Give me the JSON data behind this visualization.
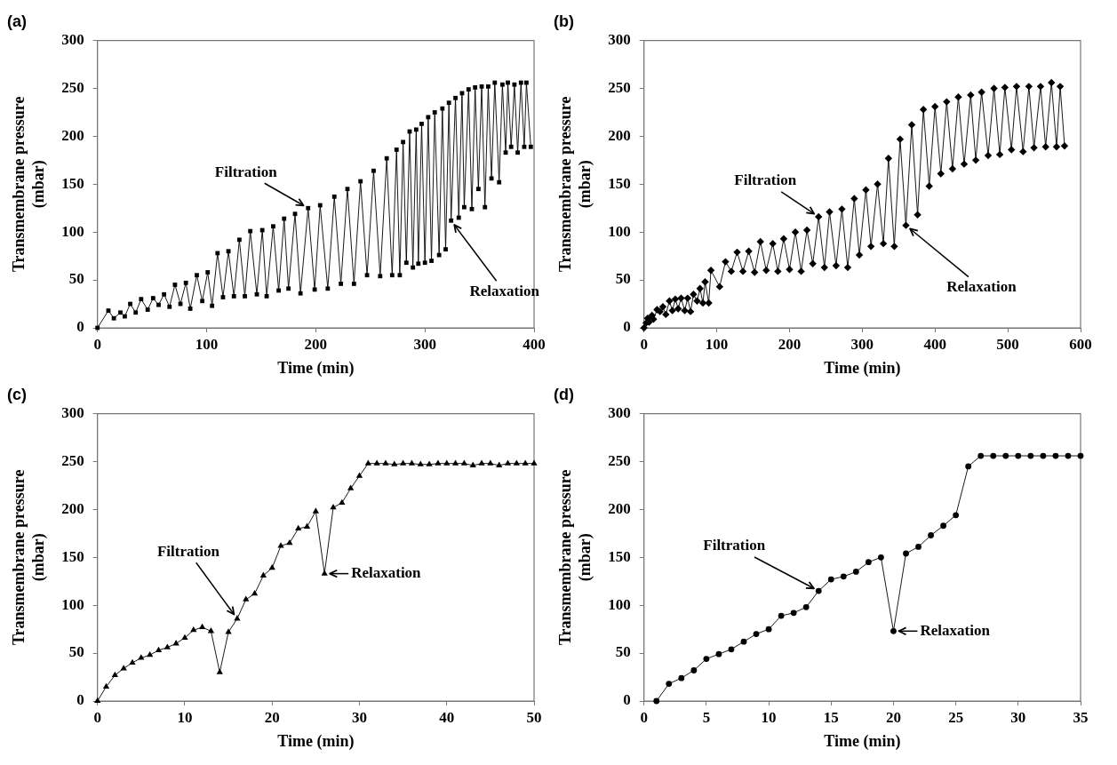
{
  "chart_data": [
    {
      "type": "line",
      "title": "(a)",
      "xlabel": "Time (min)",
      "ylabel": "Transmembrane pressure (mbar)",
      "color": "#000000",
      "marker": "square",
      "xlim": [
        0,
        400
      ],
      "xticks": [
        0,
        100,
        200,
        300,
        400
      ],
      "ylim": [
        0,
        300
      ],
      "yticks": [
        0,
        50,
        100,
        150,
        200,
        250,
        300
      ],
      "x": [
        0,
        10,
        15,
        21,
        25,
        30,
        35,
        40,
        46,
        51,
        56,
        61,
        66,
        71,
        76,
        81,
        85,
        91,
        96,
        101,
        105,
        110,
        115,
        120,
        125,
        130,
        135,
        140,
        146,
        151,
        155,
        161,
        166,
        171,
        175,
        181,
        186,
        193,
        199,
        204,
        211,
        217,
        223,
        229,
        235,
        241,
        247,
        253,
        259,
        265,
        270,
        274,
        277,
        280,
        283,
        286,
        289,
        292,
        294,
        297,
        300,
        303,
        306,
        309,
        313,
        316,
        319,
        322,
        324,
        328,
        331,
        334,
        336,
        340,
        343,
        346,
        349,
        352,
        355,
        358,
        361,
        364,
        368,
        371,
        374,
        376,
        379,
        382,
        385,
        388,
        391,
        393,
        397
      ],
      "values": [
        0,
        18,
        10,
        16,
        12,
        25,
        16,
        30,
        19,
        31,
        24,
        35,
        22,
        45,
        25,
        47,
        20,
        55,
        28,
        58,
        23,
        78,
        32,
        80,
        33,
        92,
        33,
        101,
        35,
        102,
        33,
        106,
        39,
        114,
        41,
        119,
        36,
        125,
        40,
        128,
        41,
        137,
        46,
        145,
        46,
        153,
        55,
        164,
        54,
        177,
        55,
        186,
        55,
        194,
        68,
        205,
        63,
        207,
        67,
        213,
        68,
        220,
        70,
        225,
        76,
        229,
        82,
        235,
        112,
        240,
        115,
        245,
        126,
        249,
        124,
        251,
        145,
        252,
        126,
        252,
        156,
        256,
        152,
        254,
        183,
        256,
        189,
        254,
        183,
        256,
        189,
        256,
        189
      ],
      "annotations": [
        {
          "text": "Filtration",
          "x": 193,
          "y": 125
        },
        {
          "text": "Relaxation",
          "x": 324,
          "y": 112
        }
      ]
    },
    {
      "type": "line",
      "title": "(b)",
      "xlabel": "Time (min)",
      "ylabel": "Transmembrane pressure (mbar)",
      "color": "#000000",
      "marker": "diamond",
      "xlim": [
        0,
        600
      ],
      "xticks": [
        0,
        100,
        200,
        300,
        400,
        500,
        600
      ],
      "ylim": [
        0,
        300
      ],
      "yticks": [
        0,
        50,
        100,
        150,
        200,
        250,
        300
      ],
      "x": [
        0,
        3,
        5,
        7,
        11,
        13,
        18,
        22,
        26,
        30,
        35,
        39,
        43,
        47,
        51,
        56,
        60,
        64,
        68,
        73,
        77,
        81,
        84,
        89,
        92,
        104,
        112,
        120,
        128,
        136,
        144,
        152,
        160,
        168,
        177,
        184,
        192,
        200,
        208,
        216,
        224,
        232,
        240,
        248,
        255,
        264,
        272,
        280,
        289,
        296,
        305,
        312,
        321,
        329,
        336,
        344,
        352,
        360,
        368,
        376,
        384,
        392,
        400,
        408,
        416,
        424,
        432,
        440,
        449,
        456,
        464,
        473,
        481,
        489,
        496,
        505,
        512,
        521,
        529,
        536,
        545,
        552,
        560,
        567,
        572,
        578
      ],
      "values": [
        0,
        5,
        10,
        6,
        13,
        9,
        19,
        17,
        22,
        14,
        28,
        18,
        30,
        20,
        31,
        18,
        31,
        17,
        35,
        28,
        41,
        26,
        48,
        26,
        60,
        43,
        69,
        59,
        79,
        59,
        80,
        58,
        90,
        60,
        88,
        59,
        93,
        61,
        100,
        59,
        102,
        67,
        116,
        63,
        121,
        65,
        124,
        63,
        135,
        76,
        144,
        85,
        150,
        88,
        177,
        85,
        197,
        107,
        212,
        118,
        228,
        148,
        231,
        161,
        236,
        166,
        241,
        171,
        243,
        175,
        246,
        180,
        250,
        181,
        251,
        186,
        252,
        184,
        252,
        188,
        252,
        189,
        256,
        189,
        252,
        190
      ],
      "annotations": [
        {
          "text": "Filtration",
          "x": 240,
          "y": 116
        },
        {
          "text": "Relaxation",
          "x": 360,
          "y": 107
        }
      ]
    },
    {
      "type": "line",
      "title": "(c)",
      "xlabel": "Time (min)",
      "ylabel": "Transmembrane pressure (mbar)",
      "color": "#000000",
      "marker": "triangle",
      "xlim": [
        0,
        50
      ],
      "xticks": [
        0,
        10,
        20,
        30,
        40,
        50
      ],
      "ylim": [
        0,
        300
      ],
      "yticks": [
        0,
        50,
        100,
        150,
        200,
        250,
        300
      ],
      "x": [
        0,
        1,
        2,
        3,
        4,
        5,
        6,
        7,
        8,
        9,
        10,
        11,
        12,
        13,
        14,
        15,
        16,
        17,
        18,
        19,
        20,
        21,
        22,
        23,
        24,
        25,
        26,
        27,
        28,
        29,
        30,
        31,
        32,
        33,
        34,
        35,
        36,
        37,
        38,
        39,
        40,
        41,
        42,
        43,
        44,
        45,
        46,
        47,
        48,
        49,
        50
      ],
      "values": [
        0,
        15,
        27,
        34,
        40,
        45,
        48,
        53,
        56,
        60,
        66,
        74,
        77,
        73,
        30,
        72,
        86,
        106,
        112,
        131,
        139,
        162,
        165,
        180,
        182,
        198,
        133,
        202,
        207,
        222,
        235,
        248,
        248,
        248,
        247,
        248,
        248,
        247,
        247,
        248,
        248,
        248,
        248,
        246,
        248,
        248,
        246,
        248,
        248,
        248,
        248
      ],
      "annotations": [
        {
          "text": "Filtration",
          "x": 16,
          "y": 86
        },
        {
          "text": "Relaxation",
          "x": 26,
          "y": 133
        }
      ]
    },
    {
      "type": "line",
      "title": "(d)",
      "xlabel": "Time (min)",
      "ylabel": "Transmembrane pressure (mbar)",
      "color": "#000000",
      "marker": "circle",
      "xlim": [
        0,
        35
      ],
      "xticks": [
        0,
        5,
        10,
        15,
        20,
        25,
        30,
        35
      ],
      "ylim": [
        0,
        300
      ],
      "yticks": [
        0,
        50,
        100,
        150,
        200,
        250,
        300
      ],
      "x": [
        1,
        2,
        3,
        4,
        5,
        6,
        7,
        8,
        9,
        10,
        11,
        12,
        13,
        14,
        15,
        16,
        17,
        18,
        19,
        20,
        21,
        22,
        23,
        24,
        25,
        26,
        27,
        28,
        29,
        30,
        31,
        32,
        33,
        34,
        35
      ],
      "values": [
        0,
        18,
        24,
        32,
        44,
        49,
        54,
        62,
        70,
        75,
        89,
        92,
        98,
        115,
        127,
        130,
        135,
        145,
        150,
        73,
        154,
        161,
        173,
        183,
        194,
        245,
        256,
        256,
        256,
        256,
        256,
        256,
        256,
        256,
        256
      ],
      "annotations": [
        {
          "text": "Filtration",
          "x": 14,
          "y": 115
        },
        {
          "text": "Relaxation",
          "x": 20,
          "y": 73
        }
      ]
    }
  ]
}
